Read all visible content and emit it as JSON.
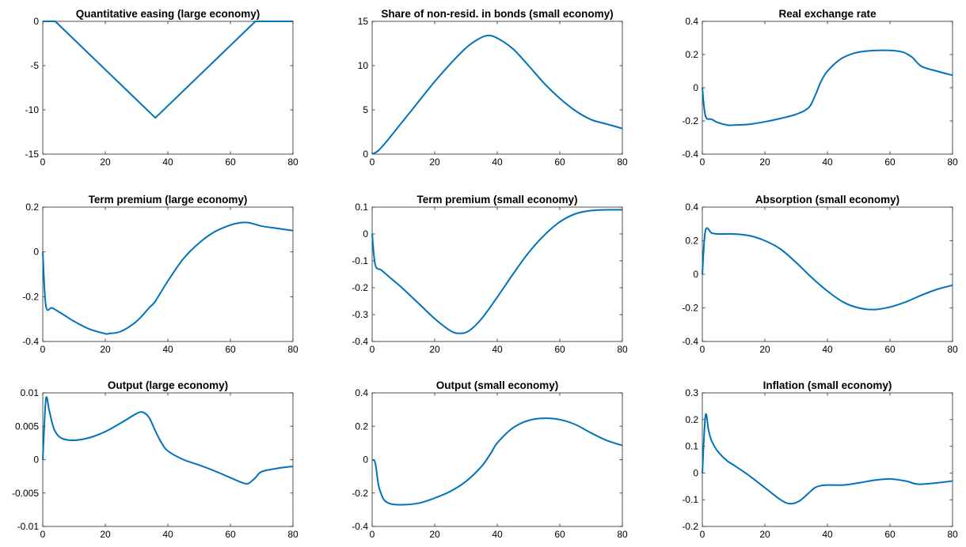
{
  "figure": {
    "line_color": "#0072BD",
    "background": "#ffffff",
    "grid": false,
    "legend": "none"
  },
  "chart_data": [
    {
      "type": "line",
      "title": "Quantitative easing (large economy)",
      "xlim": [
        0,
        80
      ],
      "ylim": [
        -15,
        0
      ],
      "xticks": [
        0,
        20,
        40,
        60,
        80
      ],
      "xtick_labels": [
        "0",
        "20",
        "40",
        "60",
        "80"
      ],
      "yticks": [
        -15,
        -10,
        -5,
        0
      ],
      "ytick_labels": [
        "-15",
        "-10",
        "-5",
        "0"
      ],
      "x": [
        0,
        4,
        36,
        68,
        80
      ],
      "y": [
        0,
        0,
        -10.9,
        0,
        0
      ]
    },
    {
      "type": "line",
      "title": "Share of non-resid. in bonds (small economy)",
      "xlim": [
        0,
        80
      ],
      "ylim": [
        0,
        15
      ],
      "xticks": [
        0,
        20,
        40,
        60,
        80
      ],
      "xtick_labels": [
        "0",
        "20",
        "40",
        "60",
        "80"
      ],
      "yticks": [
        0,
        5,
        10,
        15
      ],
      "ytick_labels": [
        "0",
        "5",
        "10",
        "15"
      ],
      "x": [
        0,
        2,
        5,
        10,
        15,
        20,
        25,
        30,
        34,
        37,
        40,
        45,
        50,
        55,
        60,
        65,
        70,
        75,
        80
      ],
      "y": [
        0,
        0.4,
        1.6,
        3.8,
        6.0,
        8.2,
        10.2,
        12.0,
        13.0,
        13.4,
        13.1,
        11.9,
        10.0,
        8.0,
        6.3,
        4.9,
        3.9,
        3.4,
        2.9
      ]
    },
    {
      "type": "line",
      "title": "Real exchange rate",
      "xlim": [
        0,
        80
      ],
      "ylim": [
        -0.4,
        0.4
      ],
      "xticks": [
        0,
        20,
        40,
        60,
        80
      ],
      "xtick_labels": [
        "0",
        "20",
        "40",
        "60",
        "80"
      ],
      "yticks": [
        -0.4,
        -0.2,
        0,
        0.2,
        0.4
      ],
      "ytick_labels": [
        "-0.4",
        "-0.2",
        "0",
        "0.2",
        "0.4"
      ],
      "x": [
        0,
        1,
        3,
        5,
        8,
        10,
        15,
        20,
        25,
        30,
        34,
        36,
        38,
        40,
        44,
        48,
        52,
        56,
        60,
        64,
        67,
        70,
        75,
        80
      ],
      "y": [
        0,
        -0.17,
        -0.19,
        -0.21,
        -0.225,
        -0.225,
        -0.22,
        -0.205,
        -0.185,
        -0.16,
        -0.12,
        -0.05,
        0.04,
        0.1,
        0.17,
        0.205,
        0.22,
        0.225,
        0.225,
        0.215,
        0.185,
        0.13,
        0.1,
        0.075
      ]
    },
    {
      "type": "line",
      "title": "Term premium (large economy)",
      "xlim": [
        0,
        80
      ],
      "ylim": [
        -0.4,
        0.2
      ],
      "xticks": [
        0,
        20,
        40,
        60,
        80
      ],
      "xtick_labels": [
        "0",
        "20",
        "40",
        "60",
        "80"
      ],
      "yticks": [
        -0.4,
        -0.2,
        0,
        0.2
      ],
      "ytick_labels": [
        "-0.4",
        "-0.2",
        "0",
        "0.2"
      ],
      "x": [
        0,
        1,
        3,
        6,
        10,
        15,
        20,
        21,
        25,
        30,
        34,
        36,
        40,
        45,
        50,
        55,
        60,
        63,
        66,
        70,
        75,
        80
      ],
      "y": [
        0,
        -0.24,
        -0.25,
        -0.275,
        -0.31,
        -0.345,
        -0.365,
        -0.365,
        -0.355,
        -0.31,
        -0.25,
        -0.22,
        -0.13,
        -0.03,
        0.04,
        0.09,
        0.12,
        0.13,
        0.13,
        0.115,
        0.105,
        0.095
      ]
    },
    {
      "type": "line",
      "title": "Term premium (small economy)",
      "xlim": [
        0,
        80
      ],
      "ylim": [
        -0.4,
        0.1
      ],
      "xticks": [
        0,
        20,
        40,
        60,
        80
      ],
      "xtick_labels": [
        "0",
        "20",
        "40",
        "60",
        "80"
      ],
      "yticks": [
        -0.4,
        -0.3,
        -0.2,
        -0.1,
        0,
        0.1
      ],
      "ytick_labels": [
        "-0.4",
        "-0.3",
        "-0.2",
        "-0.1",
        "0",
        "0.1"
      ],
      "x": [
        0,
        1,
        3,
        6,
        10,
        15,
        20,
        25,
        28,
        31,
        35,
        40,
        45,
        50,
        55,
        60,
        65,
        70,
        75,
        80
      ],
      "y": [
        0,
        -0.115,
        -0.135,
        -0.165,
        -0.205,
        -0.26,
        -0.315,
        -0.36,
        -0.37,
        -0.36,
        -0.315,
        -0.235,
        -0.15,
        -0.07,
        -0.005,
        0.045,
        0.075,
        0.087,
        0.09,
        0.09
      ]
    },
    {
      "type": "line",
      "title": "Absorption (small economy)",
      "xlim": [
        0,
        80
      ],
      "ylim": [
        -0.4,
        0.4
      ],
      "xticks": [
        0,
        20,
        40,
        60,
        80
      ],
      "xtick_labels": [
        "0",
        "20",
        "40",
        "60",
        "80"
      ],
      "yticks": [
        -0.4,
        -0.2,
        0,
        0.2,
        0.4
      ],
      "ytick_labels": [
        "-0.4",
        "-0.2",
        "0",
        "0.2",
        "0.4"
      ],
      "x": [
        0,
        1,
        3,
        5,
        10,
        15,
        20,
        25,
        30,
        35,
        40,
        45,
        50,
        55,
        60,
        65,
        70,
        75,
        80
      ],
      "y": [
        0,
        0.26,
        0.245,
        0.24,
        0.24,
        0.23,
        0.2,
        0.15,
        0.07,
        -0.02,
        -0.1,
        -0.165,
        -0.2,
        -0.21,
        -0.195,
        -0.165,
        -0.125,
        -0.09,
        -0.065
      ]
    },
    {
      "type": "line",
      "title": "Output (large economy)",
      "xlim": [
        0,
        80
      ],
      "ylim": [
        -0.01,
        0.01
      ],
      "xticks": [
        0,
        20,
        40,
        60,
        80
      ],
      "xtick_labels": [
        "0",
        "20",
        "40",
        "60",
        "80"
      ],
      "yticks": [
        -0.01,
        -0.005,
        0,
        0.005,
        0.01
      ],
      "ytick_labels": [
        "-0.01",
        "-0.005",
        "0",
        "0.005",
        "0.01"
      ],
      "x": [
        0,
        1,
        2,
        3,
        4,
        6,
        10,
        15,
        20,
        25,
        30,
        32,
        34,
        36,
        38,
        40,
        45,
        50,
        55,
        60,
        63,
        65,
        66,
        68,
        70,
        75,
        80
      ],
      "y": [
        0,
        0.009,
        0.0075,
        0.0055,
        0.0042,
        0.0032,
        0.0029,
        0.0033,
        0.0042,
        0.0055,
        0.0069,
        0.0071,
        0.0063,
        0.0043,
        0.0025,
        0.0013,
        0.0,
        -0.0008,
        -0.0017,
        -0.0027,
        -0.0033,
        -0.0036,
        -0.0035,
        -0.0027,
        -0.0018,
        -0.0013,
        -0.001
      ]
    },
    {
      "type": "line",
      "title": "Output (small economy)",
      "xlim": [
        0,
        80
      ],
      "ylim": [
        -0.4,
        0.4
      ],
      "xticks": [
        0,
        20,
        40,
        60,
        80
      ],
      "xtick_labels": [
        "0",
        "20",
        "40",
        "60",
        "80"
      ],
      "yticks": [
        -0.4,
        -0.2,
        0,
        0.2,
        0.4
      ],
      "ytick_labels": [
        "-0.4",
        "-0.2",
        "0",
        "0.2",
        "0.4"
      ],
      "x": [
        0,
        1,
        2,
        3,
        4,
        6,
        10,
        15,
        20,
        25,
        30,
        35,
        38,
        40,
        45,
        50,
        55,
        60,
        65,
        70,
        75,
        80
      ],
      "y": [
        0,
        -0.02,
        -0.15,
        -0.21,
        -0.245,
        -0.265,
        -0.27,
        -0.26,
        -0.23,
        -0.19,
        -0.13,
        -0.04,
        0.04,
        0.1,
        0.19,
        0.235,
        0.248,
        0.24,
        0.21,
        0.16,
        0.115,
        0.085
      ]
    },
    {
      "type": "line",
      "title": "Inflation (small economy)",
      "xlim": [
        0,
        80
      ],
      "ylim": [
        -0.2,
        0.3
      ],
      "xticks": [
        0,
        20,
        40,
        60,
        80
      ],
      "xtick_labels": [
        "0",
        "20",
        "40",
        "60",
        "80"
      ],
      "yticks": [
        -0.2,
        -0.1,
        0,
        0.1,
        0.2,
        0.3
      ],
      "ytick_labels": [
        "-0.2",
        "-0.1",
        "0",
        "0.1",
        "0.2",
        "0.3"
      ],
      "x": [
        0,
        1,
        2,
        3,
        5,
        8,
        10,
        15,
        20,
        25,
        28,
        31,
        34,
        36,
        38,
        40,
        45,
        50,
        55,
        60,
        65,
        68,
        70,
        75,
        80
      ],
      "y": [
        0,
        0.215,
        0.16,
        0.12,
        0.08,
        0.045,
        0.03,
        -0.01,
        -0.055,
        -0.1,
        -0.115,
        -0.105,
        -0.075,
        -0.055,
        -0.047,
        -0.045,
        -0.045,
        -0.037,
        -0.027,
        -0.022,
        -0.03,
        -0.04,
        -0.042,
        -0.037,
        -0.03
      ]
    }
  ]
}
